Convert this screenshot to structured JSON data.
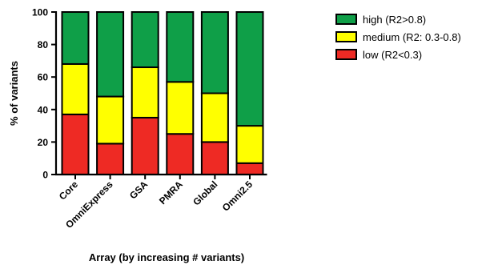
{
  "chart_data": {
    "type": "bar",
    "stacked": true,
    "title": "",
    "xlabel": "Array (by increasing # variants)",
    "ylabel": "% of variants",
    "ylim": [
      0,
      100
    ],
    "yticks": [
      0,
      20,
      40,
      60,
      80,
      100
    ],
    "grid": false,
    "legend_position": "top-right",
    "categories": [
      "Core",
      "OmniExpress",
      "GSA",
      "PMRA",
      "Global",
      "Omni2.5"
    ],
    "series": [
      {
        "name": "low (R2<0.3)",
        "color": "#ee2a24",
        "values": [
          37,
          19,
          35,
          25,
          20,
          7
        ]
      },
      {
        "name": "medium (R2: 0.3-0.8)",
        "color": "#ffff00",
        "values": [
          31,
          29,
          31,
          32,
          30,
          23
        ]
      },
      {
        "name": "high (R2>0.8)",
        "color": "#0f9f48",
        "values": [
          32,
          52,
          34,
          43,
          50,
          70
        ]
      }
    ],
    "legend_order": [
      "high (R2>0.8)",
      "medium (R2: 0.3-0.8)",
      "low (R2<0.3)"
    ]
  }
}
